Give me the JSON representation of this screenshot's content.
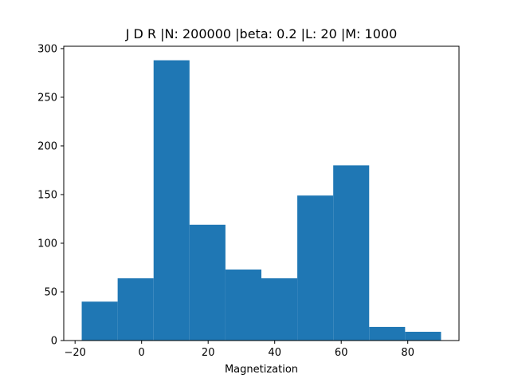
{
  "chart_data": {
    "type": "bar",
    "title": "J D  R |N: 200000 |beta: 0.2 |L: 20 |M: 1000",
    "xlabel": "Magnetization",
    "ylabel": "",
    "bins": [
      {
        "x0": -18,
        "x1": -7.2,
        "count": 40
      },
      {
        "x0": -7.2,
        "x1": 3.6,
        "count": 64
      },
      {
        "x0": 3.6,
        "x1": 14.4,
        "count": 288
      },
      {
        "x0": 14.4,
        "x1": 25.2,
        "count": 119
      },
      {
        "x0": 25.2,
        "x1": 36,
        "count": 73
      },
      {
        "x0": 36,
        "x1": 46.8,
        "count": 64
      },
      {
        "x0": 46.8,
        "x1": 57.6,
        "count": 149
      },
      {
        "x0": 57.6,
        "x1": 68.4,
        "count": 180
      },
      {
        "x0": 68.4,
        "x1": 79.2,
        "count": 14
      },
      {
        "x0": 79.2,
        "x1": 90,
        "count": 9
      }
    ],
    "xlim": [
      -23.4,
      95.4
    ],
    "ylim": [
      0,
      302.4
    ],
    "x_ticks": [
      -20,
      0,
      20,
      40,
      60,
      80
    ],
    "x_tick_labels": [
      "−20",
      "0",
      "20",
      "40",
      "60",
      "80"
    ],
    "y_ticks": [
      0,
      50,
      100,
      150,
      200,
      250,
      300
    ],
    "y_tick_labels": [
      "0",
      "50",
      "100",
      "150",
      "200",
      "250",
      "300"
    ],
    "bar_color": "#1f77b4",
    "grid": false,
    "legend": "none"
  }
}
